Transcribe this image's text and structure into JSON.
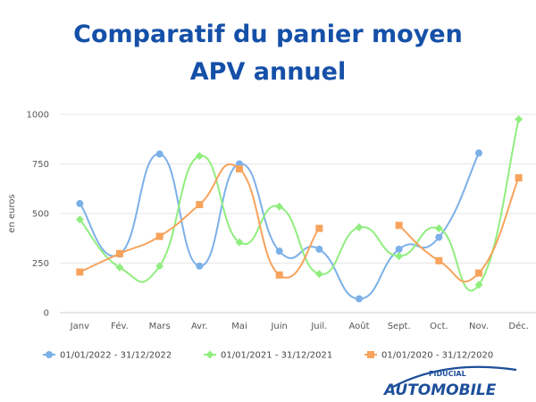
{
  "title_line1": "Comparatif du panier moyen",
  "title_line2": "APV annuel",
  "logo": {
    "top_text": "FIDUCIAL",
    "main_text": "AUTOMOBILE"
  },
  "colors": {
    "title": "#1550a8",
    "series_2022": "#7cb0e8",
    "series_2021": "#90ee7e",
    "series_2020": "#f7a35c",
    "logo_blue": "#1d4f9a"
  },
  "chart_data": {
    "type": "line",
    "title": "",
    "xlabel": "",
    "ylabel": "en euros",
    "categories": [
      "Janv",
      "Fév.",
      "Mars",
      "Avr.",
      "Mai",
      "Juin",
      "Juil.",
      "Août",
      "Sept.",
      "Oct.",
      "Nov.",
      "Déc."
    ],
    "ylim": [
      0,
      1000
    ],
    "yticks": [
      0,
      250,
      500,
      750,
      1000
    ],
    "grid": true,
    "legend_position": "bottom",
    "series": [
      {
        "name": "01/01/2022 - 31/12/2022",
        "color": "#7cb0e8",
        "marker": "circle",
        "values": [
          550,
          295,
          800,
          235,
          750,
          310,
          320,
          70,
          320,
          380,
          805,
          null
        ]
      },
      {
        "name": "01/01/2021 - 31/12/2021",
        "color": "#90ee7e",
        "marker": "diamond",
        "values": [
          470,
          228,
          235,
          790,
          355,
          535,
          195,
          430,
          285,
          425,
          140,
          975
        ]
      },
      {
        "name": "01/01/2020 - 31/12/2020",
        "color": "#f7a35c",
        "marker": "square",
        "values": [
          205,
          298,
          385,
          545,
          725,
          190,
          425,
          null,
          440,
          262,
          200,
          680
        ]
      }
    ]
  }
}
